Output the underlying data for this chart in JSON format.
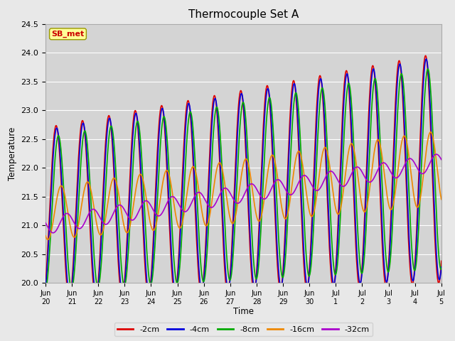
{
  "title": "Thermocouple Set A",
  "xlabel": "Time",
  "ylabel": "Temperature",
  "annotation": "SB_met",
  "ylim": [
    20.0,
    24.5
  ],
  "background_color": "#e8e8e8",
  "plot_bg_color": "#d4d4d4",
  "series": [
    {
      "label": "-2cm",
      "color": "#dd0000",
      "lw": 1.2
    },
    {
      "label": "-4cm",
      "color": "#0000dd",
      "lw": 1.2
    },
    {
      "label": "-8cm",
      "color": "#00aa00",
      "lw": 1.2
    },
    {
      "label": "-16cm",
      "color": "#ee8800",
      "lw": 1.2
    },
    {
      "label": "-32cm",
      "color": "#aa00cc",
      "lw": 1.2
    }
  ],
  "tick_labels": [
    "Jun\n20",
    "Jun\n21",
    "Jun\n22",
    "Jun\n23",
    "Jun\n24",
    "Jun\n25",
    "Jun\n26",
    "Jun\n27",
    "Jun\n28",
    "Jun\n29",
    "Jun\n30",
    "Jul\n1",
    "Jul\n2",
    "Jul\n3",
    "Jul\n4",
    "Jul\n5"
  ],
  "num_days": 15,
  "pts_per_day": 96,
  "figsize": [
    6.4,
    4.8
  ],
  "dpi": 100
}
